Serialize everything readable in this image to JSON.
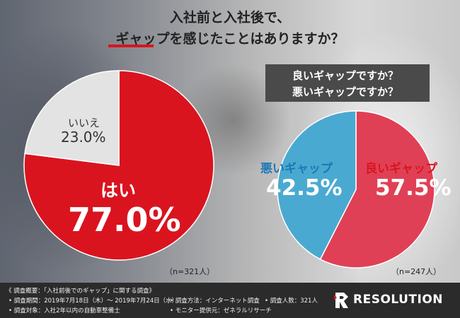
{
  "title": {
    "line1": "入社前と入社後で、",
    "line2": "ギャップを感じたことはありますか？"
  },
  "subtitle": {
    "q1": "良いギャップですか？",
    "q2": "悪いギャップですか？"
  },
  "colors": {
    "red": "#d9141f",
    "grey": "#e3e3e3",
    "pink": "#e04055",
    "blue": "#4aa9d1"
  },
  "chart_data": [
    {
      "type": "pie",
      "labels": [
        "はい",
        "いいえ"
      ],
      "values": [
        77.0,
        23.0
      ],
      "value_labels": [
        "77.0%",
        "23.0%"
      ],
      "note": "（n=321人）"
    },
    {
      "type": "pie",
      "labels": [
        "良いギャップ",
        "悪いギャップ"
      ],
      "values": [
        57.5,
        42.5
      ],
      "value_labels": [
        "57.5%",
        "42.5%"
      ],
      "note": "（n=247人）"
    }
  ],
  "footer": {
    "survey_title": "《 調査概要：「入社前後でのギャップ」に関する調査》",
    "period": "• 調査期間：2019年7月18日（木）～ 2019年7月24日（水）",
    "method": "• 調査方法：インターネット調査",
    "count": "• 調査人数：321人",
    "target": "• 調査対象：入社2年以内の自動車整備士",
    "provider": "• モニター提供元：ゼネラルリサーチ",
    "logo": "RESOLUTION",
    "logo_icon": "resolution-r-logo-icon"
  }
}
